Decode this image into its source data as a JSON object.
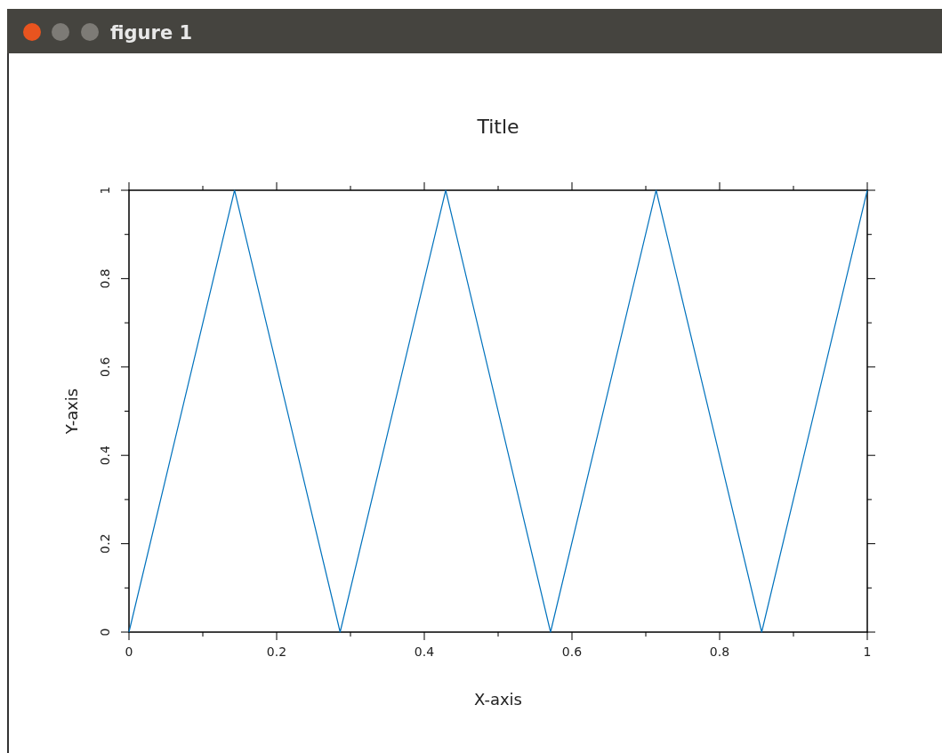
{
  "chart_data": {
    "type": "line",
    "title": "Title",
    "xlabel": "X-axis",
    "ylabel": "Y-axis",
    "annotations": [
      "figure 1"
    ],
    "x": [
      0,
      0.143,
      0.286,
      0.429,
      0.571,
      0.714,
      0.857,
      1
    ],
    "series": [
      {
        "color": "#0072bd",
        "values": [
          0,
          1,
          0,
          1,
          0,
          1,
          0,
          1
        ]
      }
    ],
    "xlim": [
      0,
      1
    ],
    "ylim": [
      0,
      1
    ],
    "xticks": [
      0,
      {
        "value": 0.1,
        "label": null
      },
      0.2,
      {
        "value": 0.3,
        "label": null
      },
      0.4,
      {
        "value": 0.5,
        "label": null
      },
      0.6,
      {
        "value": 0.7,
        "label": null
      },
      0.8,
      {
        "value": 0.9,
        "label": null
      },
      1
    ],
    "yticks": [
      0,
      {
        "value": 0.1,
        "label": null
      },
      0.2,
      {
        "value": 0.3,
        "label": null
      },
      0.4,
      {
        "value": 0.5,
        "label": null
      },
      0.6,
      {
        "value": 0.7,
        "label": null
      },
      0.8,
      {
        "value": 0.9,
        "label": null
      },
      1
    ],
    "grid": false,
    "marker": "none",
    "line_style": "solid"
  }
}
